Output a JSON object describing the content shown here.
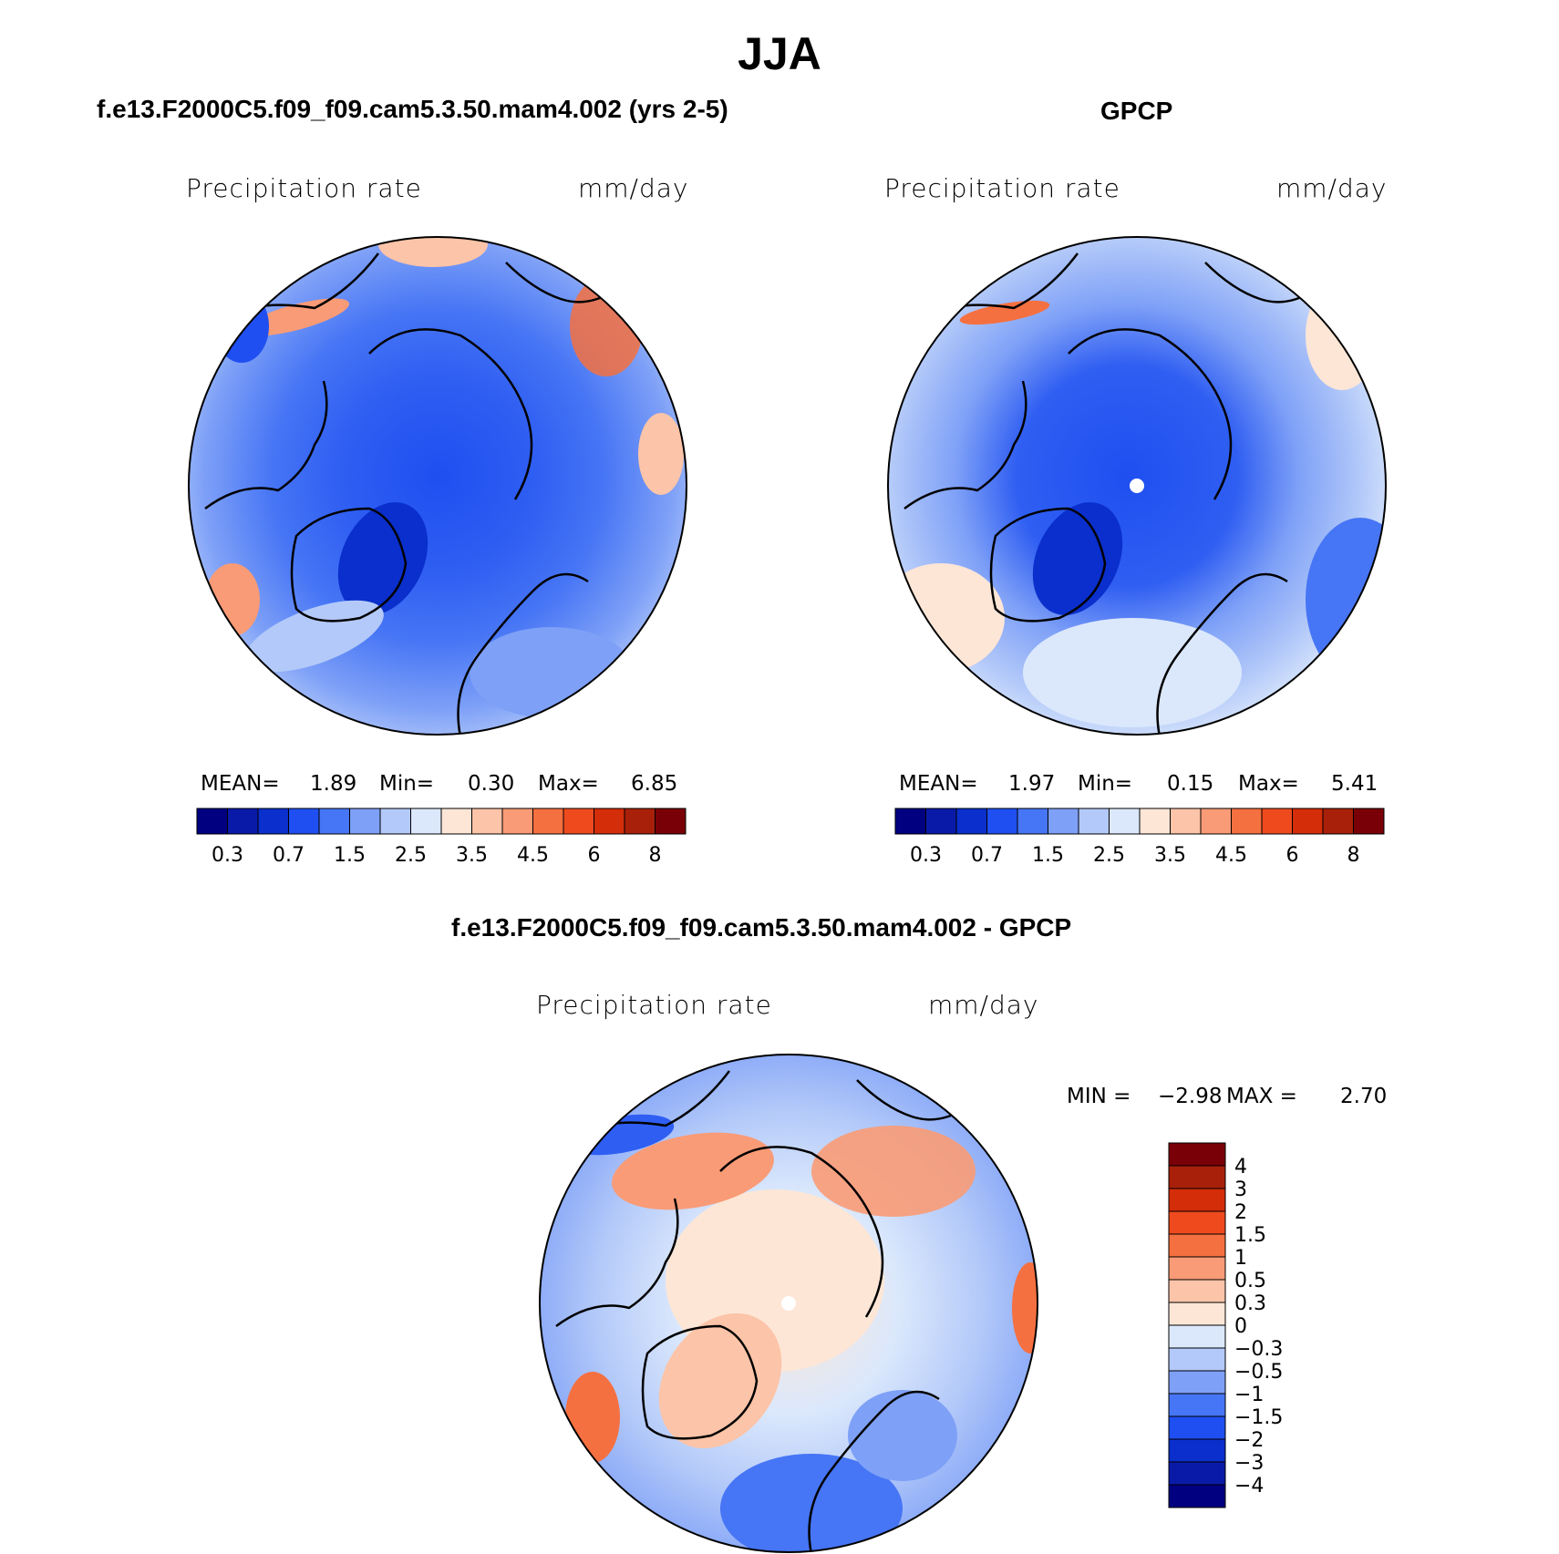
{
  "title": "JJA",
  "panels": [
    {
      "title": "f.e13.F2000C5.f09_f09.cam5.3.50.mam4.002 (yrs 2-5)",
      "variable": "Precipitation  rate",
      "units": "mm/day",
      "stats": {
        "mean_label": "MEAN=",
        "mean": "1.89",
        "min_label": "Min=",
        "min": "0.30",
        "max_label": "Max=",
        "max": "6.85"
      }
    },
    {
      "title": "GPCP",
      "variable": "Precipitation  rate",
      "units": "mm/day",
      "stats": {
        "mean_label": "MEAN=",
        "mean": "1.97",
        "min_label": "Min=",
        "min": "0.15",
        "max_label": "Max=",
        "max": "5.41"
      }
    },
    {
      "title": "f.e13.F2000C5.f09_f09.cam5.3.50.mam4.002 - GPCP",
      "variable": "Precipitation  rate",
      "units": "mm/day",
      "stats": {
        "min_label": "MIN =",
        "min": "−2.98",
        "max_label": "MAX =",
        "max": "2.70"
      }
    }
  ],
  "colorbar_abs": {
    "colors": [
      "#000080",
      "#0a1aa8",
      "#0a2fcc",
      "#1f4ff0",
      "#4675f5",
      "#7ea0f7",
      "#b3c9f9",
      "#dbe8fc",
      "#fde6d6",
      "#fcc4a8",
      "#f99b76",
      "#f57040",
      "#ee4a1e",
      "#d42d0a",
      "#a8200a",
      "#7a0008"
    ],
    "labels": [
      "0.3",
      "0.7",
      "1.5",
      "2.5",
      "3.5",
      "4.5",
      "6",
      "8"
    ]
  },
  "colorbar_diff": {
    "colors": [
      "#000080",
      "#0a1aa8",
      "#0a2fcc",
      "#1f4ff0",
      "#4675f5",
      "#7ea0f7",
      "#b3c9f9",
      "#dbe8fc",
      "#fde6d6",
      "#fcc4a8",
      "#f99b76",
      "#f57040",
      "#ee4a1e",
      "#d42d0a",
      "#a8200a",
      "#7a0008"
    ],
    "labels": [
      "4",
      "3",
      "2",
      "1.5",
      "1",
      "0.5",
      "0.3",
      "0",
      "−0.3",
      "−0.5",
      "−1",
      "−1.5",
      "−2",
      "−3",
      "−4"
    ]
  }
}
